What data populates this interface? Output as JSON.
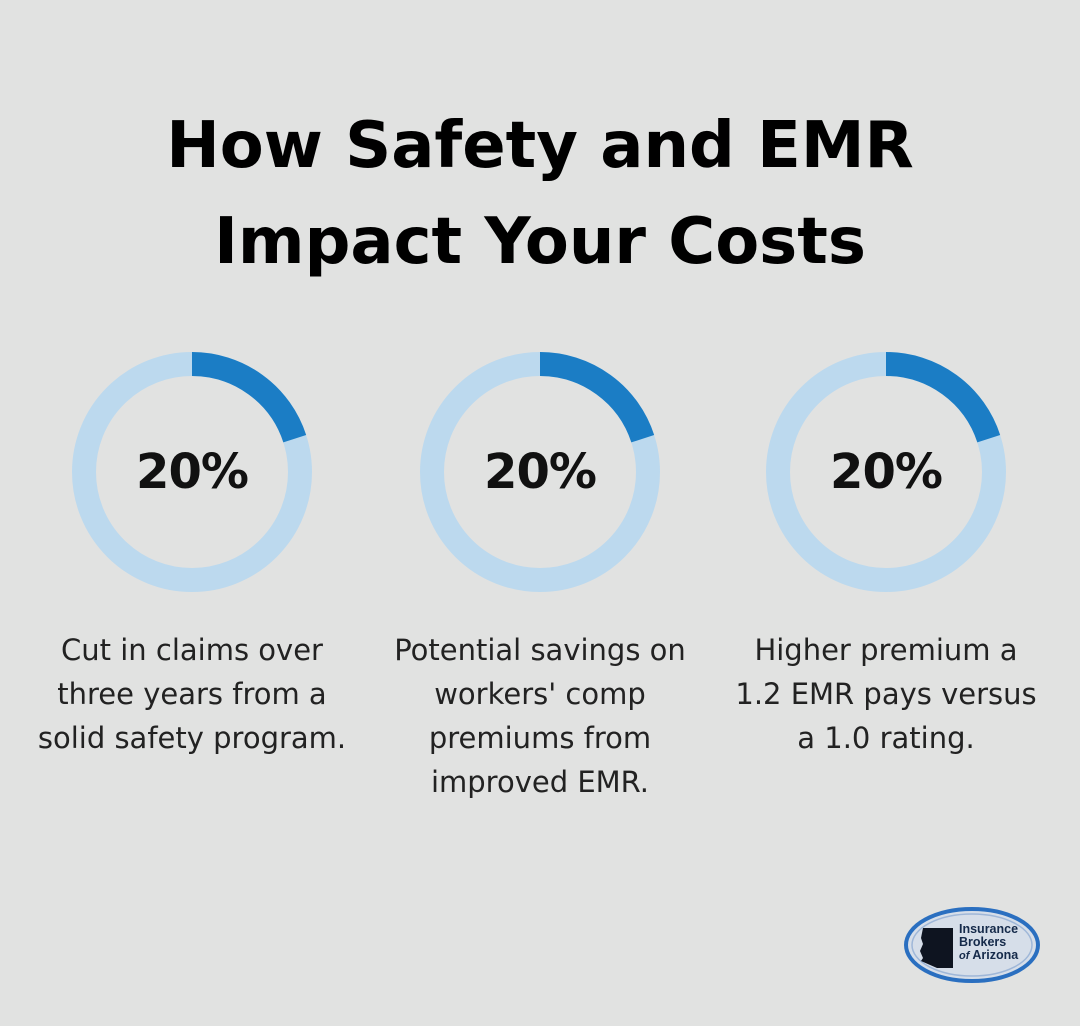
{
  "title": {
    "line1": "How Safety and EMR",
    "line2": "Impact Your Costs"
  },
  "stats": [
    {
      "value": "20%",
      "percent": 20,
      "lines": [
        "Cut in claims over",
        "three years from a",
        "solid safety program."
      ]
    },
    {
      "value": "20%",
      "percent": 20,
      "lines": [
        "Potential savings on",
        "workers' comp",
        "premiums from",
        "improved EMR."
      ]
    },
    {
      "value": "20%",
      "percent": 20,
      "lines": [
        "Higher premium a",
        "1.2 EMR pays versus",
        "a 1.0 rating."
      ]
    }
  ],
  "colors": {
    "background": "#e1e2e1",
    "ring_track": "#bcd9ee",
    "ring_fill": "#1b7dc5",
    "text": "#000000"
  },
  "logo": {
    "line1": "Insurance",
    "line2": "Brokers",
    "line3_prefix": "of",
    "line3_name": "Arizona",
    "icon": "arizona-map-icon"
  }
}
